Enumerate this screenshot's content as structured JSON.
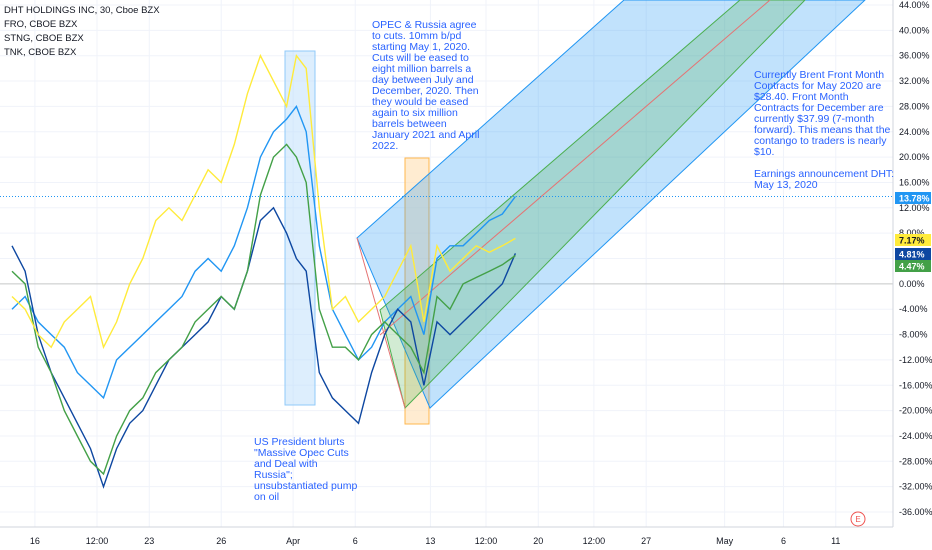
{
  "legend": {
    "title": "DHT HOLDINGS INC, 30, Cboe BZX",
    "items": [
      "FRO, CBOE BZX",
      "STNG, CBOE BZX",
      "TNK, CBOE BZX"
    ]
  },
  "annotations": {
    "opec": "OPEC & Russia agree\nto cuts. 10mm b/pd\nstarting May 1, 2020.\nCuts will be eased to\neight million barrels a\nday between July and\nDecember, 2020. Then\nthey would be eased\nagain to six million\nbarrels between\nJanuary 2021 and April\n2022.",
    "brent": "Currently Brent Front Month\nContracts for May 2020 are\n$28.40. Front Month\nContracts for December are\ncurrently $37.99 (7-month\nforward). This means that the\ncontango to traders is nearly\n$10.\n\nEarnings announcement DHT:\nMay 13, 2020",
    "president": "US President blurts\n\"Massive Opec Cuts\nand Deal with\nRussia\";\nunsubstantiated pump\non oil"
  },
  "earnings_marker": "E",
  "colors": {
    "dht": "#2196f3",
    "fro": "#0d47a1",
    "stng": "#43a047",
    "tnk": "#ffeb3b",
    "channel_blue": "#2196f3",
    "channel_green": "#4caf50",
    "median": "#e57373",
    "highlight_blue": "#bbdefb",
    "highlight_orange": "#ffe0b2"
  },
  "chart_data": {
    "type": "line",
    "title": "DHT HOLDINGS INC, 30, Cboe BZX",
    "y_unit": "%",
    "ylim": [
      -38,
      44
    ],
    "y_ticks": [
      "44.00%",
      "40.00%",
      "36.00%",
      "32.00%",
      "28.00%",
      "24.00%",
      "20.00%",
      "16.00%",
      "12.00%",
      "8.00%",
      "4.00%",
      "0.00%",
      "-4.00%",
      "-8.00%",
      "-12.00%",
      "-16.00%",
      "-20.00%",
      "-24.00%",
      "-28.00%",
      "-32.00%",
      "-36.00%"
    ],
    "x_ticks": [
      "16",
      "12:00",
      "23",
      "26",
      "Apr",
      "6",
      "13",
      "12:00",
      "20",
      "12:00",
      "27",
      "May",
      "6",
      "11"
    ],
    "x_tick_pos": [
      0.35,
      1.3,
      2.1,
      3.2,
      4.3,
      5.25,
      6.4,
      7.25,
      8.05,
      8.9,
      9.7,
      10.9,
      11.8,
      12.6
    ],
    "xlim": [
      0,
      13.2
    ],
    "grid": true,
    "series": [
      {
        "name": "DHT HOLDINGS INC",
        "color": "#2196f3",
        "last_label": "13.78%",
        "x": [
          0,
          0.2,
          0.4,
          0.6,
          0.8,
          1.0,
          1.2,
          1.4,
          1.6,
          1.8,
          2.0,
          2.2,
          2.4,
          2.6,
          2.8,
          3.0,
          3.2,
          3.4,
          3.6,
          3.8,
          4.0,
          4.2,
          4.35,
          4.5,
          4.7,
          4.9,
          5.1,
          5.3,
          5.5,
          5.7,
          5.9,
          6.1,
          6.3,
          6.5,
          6.7,
          6.9,
          7.1,
          7.3,
          7.5,
          7.7
        ],
        "y": [
          -4,
          -2,
          -6,
          -8,
          -10,
          -14,
          -16,
          -18,
          -12,
          -10,
          -8,
          -6,
          -4,
          -2,
          2,
          4,
          2,
          6,
          12,
          20,
          24,
          26,
          28,
          24,
          6,
          -4,
          -8,
          -12,
          -10,
          -6,
          -4,
          -2,
          -8,
          4,
          6,
          6,
          8,
          10,
          11,
          13.78
        ]
      },
      {
        "name": "FRO",
        "color": "#0d47a1",
        "last_label": "4.81%",
        "x": [
          0,
          0.2,
          0.4,
          0.6,
          0.8,
          1.0,
          1.2,
          1.4,
          1.6,
          1.8,
          2.0,
          2.2,
          2.4,
          2.6,
          2.8,
          3.0,
          3.2,
          3.4,
          3.6,
          3.8,
          4.0,
          4.2,
          4.35,
          4.5,
          4.7,
          4.9,
          5.1,
          5.3,
          5.5,
          5.7,
          5.9,
          6.1,
          6.3,
          6.5,
          6.7,
          6.9,
          7.1,
          7.3,
          7.5,
          7.7
        ],
        "y": [
          6,
          2,
          -8,
          -14,
          -18,
          -22,
          -26,
          -32,
          -26,
          -22,
          -20,
          -16,
          -12,
          -10,
          -8,
          -6,
          -2,
          -4,
          2,
          10,
          12,
          8,
          4,
          2,
          -14,
          -18,
          -20,
          -22,
          -14,
          -8,
          -4,
          -6,
          -16,
          -6,
          -8,
          -6,
          -4,
          -2,
          0,
          4.81
        ]
      },
      {
        "name": "STNG",
        "color": "#43a047",
        "last_label": "4.47%",
        "x": [
          0,
          0.2,
          0.4,
          0.6,
          0.8,
          1.0,
          1.2,
          1.4,
          1.6,
          1.8,
          2.0,
          2.2,
          2.4,
          2.6,
          2.8,
          3.0,
          3.2,
          3.4,
          3.6,
          3.8,
          4.0,
          4.2,
          4.35,
          4.5,
          4.7,
          4.9,
          5.1,
          5.3,
          5.5,
          5.7,
          5.9,
          6.1,
          6.3,
          6.5,
          6.7,
          6.9,
          7.1,
          7.3,
          7.5,
          7.7
        ],
        "y": [
          2,
          0,
          -10,
          -14,
          -20,
          -24,
          -28,
          -30,
          -24,
          -20,
          -18,
          -14,
          -12,
          -10,
          -6,
          -4,
          -2,
          -4,
          2,
          14,
          20,
          22,
          20,
          16,
          -4,
          -10,
          -10,
          -12,
          -8,
          -6,
          -8,
          -10,
          -14,
          -2,
          -4,
          0,
          1,
          2,
          3,
          4.47
        ]
      },
      {
        "name": "TNK",
        "color": "#ffeb3b",
        "last_label": "7.17%",
        "x": [
          0,
          0.2,
          0.4,
          0.6,
          0.8,
          1.0,
          1.2,
          1.4,
          1.6,
          1.8,
          2.0,
          2.2,
          2.4,
          2.6,
          2.8,
          3.0,
          3.2,
          3.4,
          3.6,
          3.8,
          4.0,
          4.2,
          4.35,
          4.5,
          4.7,
          4.9,
          5.1,
          5.3,
          5.5,
          5.7,
          5.9,
          6.1,
          6.3,
          6.5,
          6.7,
          6.9,
          7.1,
          7.3,
          7.5,
          7.7
        ],
        "y": [
          -2,
          -4,
          -8,
          -10,
          -6,
          -4,
          -2,
          -10,
          -6,
          0,
          4,
          10,
          12,
          10,
          14,
          18,
          16,
          22,
          30,
          36,
          32,
          28,
          36,
          34,
          12,
          -4,
          -2,
          -6,
          -4,
          -2,
          2,
          6,
          -6,
          6,
          2,
          4,
          6,
          5,
          6,
          7.17
        ]
      }
    ]
  }
}
